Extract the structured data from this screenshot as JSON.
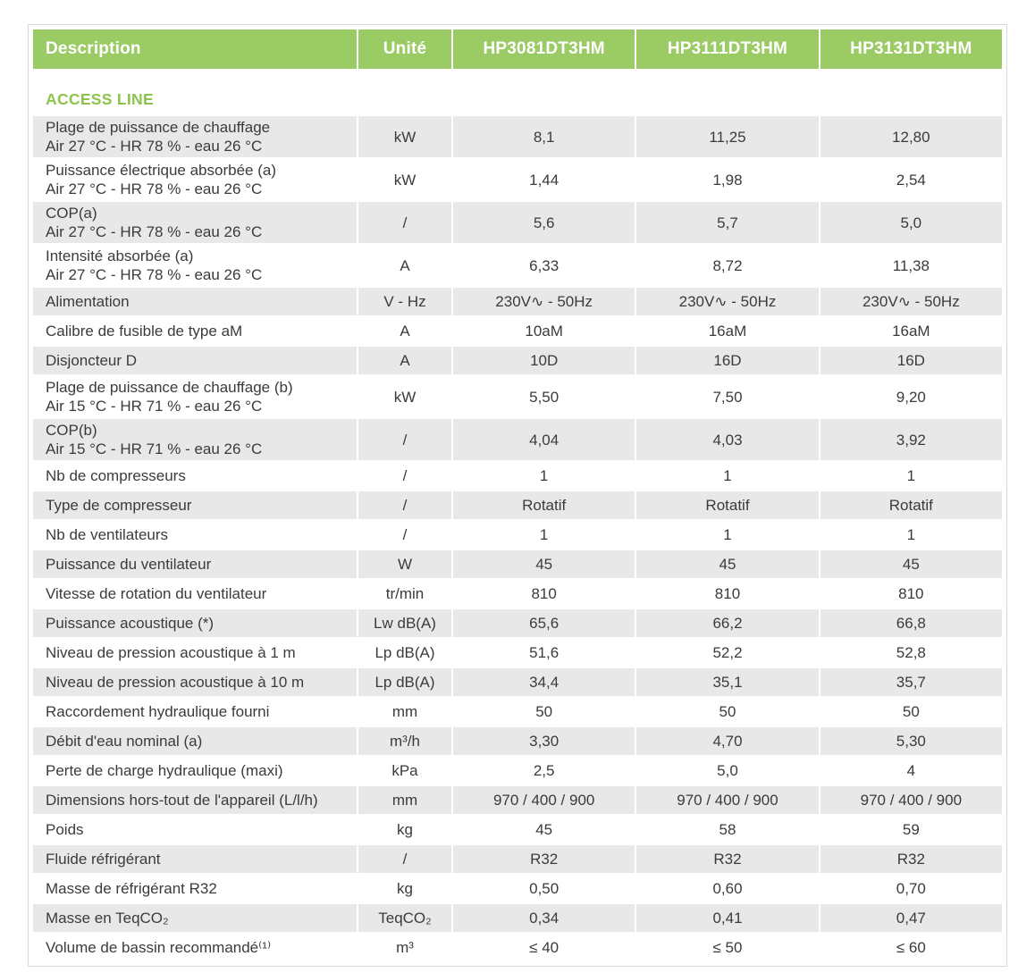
{
  "colors": {
    "header_bg": "#9BCB64",
    "header_text": "#FFFFFF",
    "section_title": "#8CC44B",
    "row_alt_bg": "#E8E8E8",
    "row_bg": "#FFFFFF",
    "text": "#3B3B3B",
    "border": "#D9D9D9"
  },
  "table": {
    "section_title": "ACCESS LINE",
    "columns": [
      "Description",
      "Unité",
      "HP3081DT3HM",
      "HP3111DT3HM",
      "HP3131DT3HM"
    ],
    "rows": [
      {
        "description": "Plage de puissance de chauffage\nAir 27 °C - HR 78 % - eau 26 °C",
        "unit": "kW",
        "values": [
          "8,1",
          "11,25",
          "12,80"
        ]
      },
      {
        "description": "Puissance électrique absorbée (a)\nAir 27 °C - HR 78 % - eau 26 °C",
        "unit": "kW",
        "values": [
          "1,44",
          "1,98",
          "2,54"
        ]
      },
      {
        "description": "COP(a)\nAir 27 °C - HR 78 % - eau 26 °C",
        "unit": "/",
        "values": [
          "5,6",
          "5,7",
          "5,0"
        ]
      },
      {
        "description": "Intensité absorbée (a)\nAir 27 °C - HR 78 % - eau 26 °C",
        "unit": "A",
        "values": [
          "6,33",
          "8,72",
          "11,38"
        ]
      },
      {
        "description": "Alimentation",
        "unit": "V - Hz",
        "values": [
          "230V∿ - 50Hz",
          "230V∿ - 50Hz",
          "230V∿ - 50Hz"
        ]
      },
      {
        "description": "Calibre de fusible de type aM",
        "unit": "A",
        "values": [
          "10aM",
          "16aM",
          "16aM"
        ]
      },
      {
        "description": "Disjoncteur D",
        "unit": "A",
        "values": [
          "10D",
          "16D",
          "16D"
        ]
      },
      {
        "description": "Plage de puissance de chauffage (b)\nAir 15 °C - HR 71 % - eau 26 °C",
        "unit": "kW",
        "values": [
          "5,50",
          "7,50",
          "9,20"
        ]
      },
      {
        "description": "COP(b)\nAir 15 °C - HR 71 % - eau 26 °C",
        "unit": "/",
        "values": [
          "4,04",
          "4,03",
          "3,92"
        ]
      },
      {
        "description": "Nb de compresseurs",
        "unit": "/",
        "values": [
          "1",
          "1",
          "1"
        ]
      },
      {
        "description": "Type de compresseur",
        "unit": "/",
        "values": [
          "Rotatif",
          "Rotatif",
          "Rotatif"
        ]
      },
      {
        "description": "Nb de ventilateurs",
        "unit": "/",
        "values": [
          "1",
          "1",
          "1"
        ]
      },
      {
        "description": "Puissance du ventilateur",
        "unit": "W",
        "values": [
          "45",
          "45",
          "45"
        ]
      },
      {
        "description": "Vitesse de rotation du ventilateur",
        "unit": "tr/min",
        "values": [
          "810",
          "810",
          "810"
        ]
      },
      {
        "description": "Puissance acoustique (*)",
        "unit": "Lw dB(A)",
        "values": [
          "65,6",
          "66,2",
          "66,8"
        ]
      },
      {
        "description": "Niveau de pression acoustique à 1 m",
        "unit": "Lp dB(A)",
        "values": [
          "51,6",
          "52,2",
          "52,8"
        ]
      },
      {
        "description": "Niveau de pression acoustique à 10 m",
        "unit": "Lp dB(A)",
        "values": [
          "34,4",
          "35,1",
          "35,7"
        ]
      },
      {
        "description": "Raccordement hydraulique fourni",
        "unit": "mm",
        "values": [
          "50",
          "50",
          "50"
        ]
      },
      {
        "description": "Débit d'eau nominal (a)",
        "unit": "m³/h",
        "values": [
          "3,30",
          "4,70",
          "5,30"
        ]
      },
      {
        "description": "Perte de charge hydraulique (maxi)",
        "unit": "kPa",
        "values": [
          "2,5",
          "5,0",
          "4"
        ]
      },
      {
        "description": "Dimensions hors-tout de l'appareil (L/l/h)",
        "unit": "mm",
        "values": [
          "970 / 400 / 900",
          "970 / 400 / 900",
          "970 / 400 / 900"
        ]
      },
      {
        "description": "Poids",
        "unit": "kg",
        "values": [
          "45",
          "58",
          "59"
        ]
      },
      {
        "description": "Fluide réfrigérant",
        "unit": "/",
        "values": [
          "R32",
          "R32",
          "R32"
        ]
      },
      {
        "description": "Masse de réfrigérant R32",
        "unit": "kg",
        "values": [
          "0,50",
          "0,60",
          "0,70"
        ]
      },
      {
        "description": "Masse en TeqCO₂",
        "unit": "TeqCO₂",
        "values": [
          "0,34",
          "0,41",
          "0,47"
        ]
      },
      {
        "description": "Volume de bassin recommandé⁽¹⁾",
        "unit": "m³",
        "values": [
          "≤ 40",
          "≤ 50",
          "≤ 60"
        ]
      }
    ]
  }
}
